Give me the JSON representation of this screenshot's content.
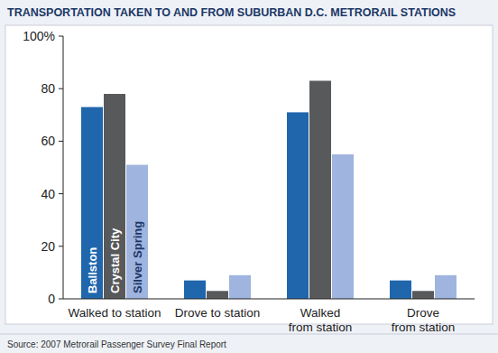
{
  "chart_data": {
    "type": "bar",
    "title": "TRANSPORTATION TAKEN TO AND FROM SUBURBAN D.C. METRORAIL STATIONS",
    "source": "Source: 2007 Metrorail Passenger Survey Final Report",
    "categories": [
      "Walked to station",
      "Drove to station",
      "Walked\nfrom station",
      "Drove\nfrom station"
    ],
    "series": [
      {
        "name": "Ballston",
        "color": "#1f66ad",
        "values": [
          73,
          7,
          71,
          7
        ]
      },
      {
        "name": "Crystal City",
        "color": "#58595b",
        "values": [
          78,
          3,
          83,
          3
        ]
      },
      {
        "name": "Silver Spring",
        "color": "#9fb4de",
        "values": [
          51,
          9,
          55,
          9
        ]
      }
    ],
    "ylim": [
      0,
      100
    ],
    "yticks": [
      0,
      20,
      40,
      60,
      80,
      {
        "value": 100,
        "label": "100%"
      }
    ],
    "grid": false
  }
}
